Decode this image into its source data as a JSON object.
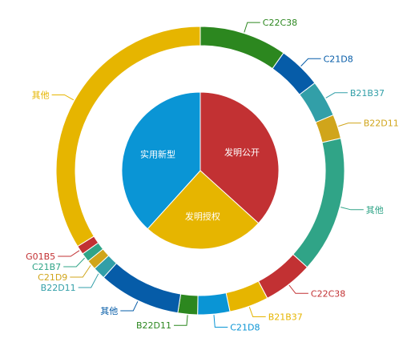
{
  "chart_data": {
    "type": "pie",
    "inner_ring": [
      {
        "name": "发明公开",
        "value": 36.7,
        "color": "#c23133"
      },
      {
        "name": "发明授权",
        "value": 25.0,
        "color": "#e6b500"
      },
      {
        "name": "实用新型",
        "value": 38.3,
        "color": "#0a95d5"
      }
    ],
    "outer_ring": [
      {
        "name": "C22C38",
        "value": 9.8,
        "color": "#2c871f",
        "group": "发明公开"
      },
      {
        "name": "C21D8",
        "value": 4.8,
        "color": "#065ca8",
        "group": "发明公开"
      },
      {
        "name": "B21B37",
        "value": 4.1,
        "color": "#329fa8",
        "group": "发明公开"
      },
      {
        "name": "B22D11",
        "value": 2.7,
        "color": "#d0a51b",
        "group": "发明公开"
      },
      {
        "name": "其他",
        "value": 15.3,
        "color": "#30a487",
        "group": "发明公开"
      },
      {
        "name": "C22C38",
        "value": 5.6,
        "color": "#c23133",
        "group": "发明授权"
      },
      {
        "name": "B21B37",
        "value": 4.4,
        "color": "#e6b500",
        "group": "发明授权"
      },
      {
        "name": "C21D8",
        "value": 3.6,
        "color": "#0a95d5",
        "group": "发明授权"
      },
      {
        "name": "B22D11",
        "value": 2.2,
        "color": "#2c871f",
        "group": "发明授权"
      },
      {
        "name": "其他",
        "value": 9.2,
        "color": "#065ca8",
        "group": "发明授权"
      },
      {
        "name": "B22D11",
        "value": 1.4,
        "color": "#329fa8",
        "group": "实用新型"
      },
      {
        "name": "C21D9",
        "value": 1.1,
        "color": "#d0a51b",
        "group": "实用新型"
      },
      {
        "name": "C21B7",
        "value": 1.0,
        "color": "#30a487",
        "group": "实用新型"
      },
      {
        "name": "G01B5",
        "value": 1.0,
        "color": "#c23133",
        "group": "实用新型"
      },
      {
        "name": "其他",
        "value": 33.8,
        "color": "#e6b500",
        "group": "实用新型"
      }
    ]
  }
}
